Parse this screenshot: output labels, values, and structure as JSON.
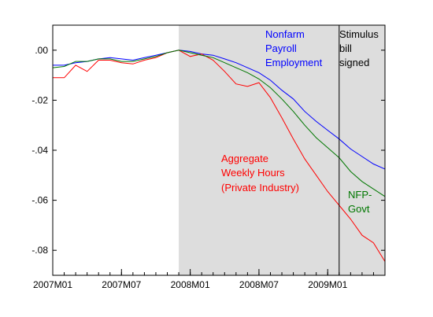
{
  "chart_data": {
    "type": "line",
    "title": "",
    "xlabel": "",
    "ylabel": "",
    "x_tick_labels": [
      "2007M01",
      "2007M07",
      "2008M01",
      "2008M07",
      "2009M01"
    ],
    "y_tick_labels": [
      ".00",
      "-.02",
      "-.04",
      "-.06",
      "-.08"
    ],
    "y_ticks": [
      0.0,
      -0.02,
      -0.04,
      -0.06,
      -0.08
    ],
    "ylim": [
      -0.09,
      0.01
    ],
    "x_range": [
      "2007M01",
      "2009M06"
    ],
    "grid": false,
    "recession_shading": {
      "start": "2007M12",
      "end": "2009M06",
      "color": "#dddddd"
    },
    "event_line": {
      "x": "2009M02",
      "label_lines": [
        "Stimulus",
        "bill",
        "signed"
      ],
      "color": "#000000"
    },
    "x": [
      "2007M01",
      "2007M02",
      "2007M03",
      "2007M04",
      "2007M05",
      "2007M06",
      "2007M07",
      "2007M08",
      "2007M09",
      "2007M10",
      "2007M11",
      "2007M12",
      "2008M01",
      "2008M02",
      "2008M03",
      "2008M04",
      "2008M05",
      "2008M06",
      "2008M07",
      "2008M08",
      "2008M09",
      "2008M10",
      "2008M11",
      "2008M12",
      "2009M01",
      "2009M02",
      "2009M03",
      "2009M04",
      "2009M05",
      "2009M06"
    ],
    "series": [
      {
        "name": "Nonfarm Payroll Employment",
        "label_lines": [
          "Nonfarm",
          "Payroll",
          "Employment"
        ],
        "color": "#0000ff",
        "values": [
          -0.006,
          -0.006,
          -0.005,
          -0.0045,
          -0.0035,
          -0.003,
          -0.0035,
          -0.004,
          -0.003,
          -0.002,
          -0.001,
          0.0,
          -0.0005,
          -0.0015,
          -0.002,
          -0.0035,
          -0.005,
          -0.007,
          -0.009,
          -0.012,
          -0.016,
          -0.0195,
          -0.0245,
          -0.0285,
          -0.032,
          -0.0355,
          -0.0395,
          -0.0425,
          -0.0455,
          -0.0475
        ]
      },
      {
        "name": "Aggregate Weekly Hours (Private Industry)",
        "label_lines": [
          "Aggregate",
          "Weekly Hours",
          "(Private Industry)"
        ],
        "color": "#ff0000",
        "values": [
          -0.011,
          -0.011,
          -0.006,
          -0.0085,
          -0.004,
          -0.004,
          -0.005,
          -0.0055,
          -0.004,
          -0.003,
          -0.001,
          0.0,
          -0.0025,
          -0.0015,
          -0.004,
          -0.0085,
          -0.0135,
          -0.0145,
          -0.013,
          -0.019,
          -0.027,
          -0.0355,
          -0.0435,
          -0.05,
          -0.0565,
          -0.062,
          -0.0675,
          -0.074,
          -0.077,
          -0.0845
        ]
      },
      {
        "name": "NFP-Govt",
        "label_lines": [
          "NFP-",
          "Govt"
        ],
        "color": "#007700",
        "values": [
          -0.007,
          -0.0065,
          -0.0045,
          -0.0045,
          -0.0035,
          -0.0035,
          -0.0045,
          -0.0045,
          -0.0035,
          -0.0025,
          -0.001,
          0.0,
          -0.001,
          -0.002,
          -0.003,
          -0.005,
          -0.007,
          -0.009,
          -0.0115,
          -0.015,
          -0.0195,
          -0.0245,
          -0.03,
          -0.035,
          -0.039,
          -0.043,
          -0.0485,
          -0.0525,
          -0.0555,
          -0.0585
        ]
      }
    ]
  }
}
